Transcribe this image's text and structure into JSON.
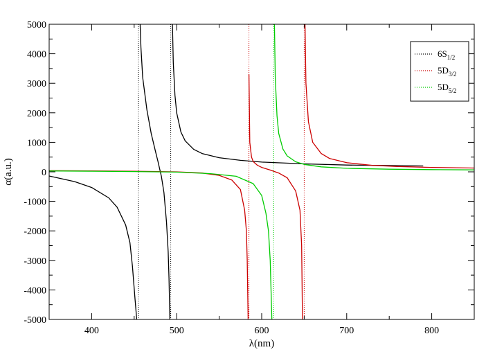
{
  "chart_data": {
    "type": "line",
    "xlabel": "λ(nm)",
    "ylabel": "α(a.u.)",
    "xlim": [
      350,
      850
    ],
    "ylim": [
      -5000,
      5000
    ],
    "x_ticks": [
      400,
      500,
      600,
      700,
      800
    ],
    "y_ticks": [
      -5000,
      -4000,
      -3000,
      -2000,
      -1000,
      0,
      1000,
      2000,
      3000,
      4000,
      5000
    ],
    "grid": false,
    "legend_position": "top-right",
    "resonance_lines": [
      {
        "x": 455,
        "color": "#000000"
      },
      {
        "x": 493,
        "color": "#000000"
      },
      {
        "x": 585,
        "color": "#cc0000"
      },
      {
        "x": 614,
        "color": "#00cc00"
      },
      {
        "x": 650,
        "color": "#cc0000"
      }
    ],
    "series": [
      {
        "name": "6S",
        "subscript": "1/2",
        "color": "#000000",
        "segments": [
          {
            "x": [
              350,
              380,
              400,
              420,
              430,
              440,
              445,
              448,
              451,
              453
            ],
            "y": [
              -140,
              -330,
              -530,
              -880,
              -1200,
              -1800,
              -2400,
              -3200,
              -4300,
              -5000
            ]
          },
          {
            "x": [
              457,
              458,
              460,
              465,
              470,
              475,
              478,
              480,
              482,
              485,
              488,
              490,
              491,
              492
            ],
            "y": [
              5000,
              4200,
              3200,
              2100,
              1300,
              700,
              350,
              100,
              -150,
              -700,
              -1700,
              -2700,
              -3600,
              -5000
            ]
          },
          {
            "x": [
              495,
              496,
              498,
              500,
              505,
              510,
              520,
              530,
              550,
              575,
              600,
              650,
              700,
              790
            ],
            "y": [
              5000,
              3700,
              2600,
              2000,
              1350,
              1050,
              760,
              620,
              480,
              390,
              330,
              270,
              230,
              200
            ]
          }
        ]
      },
      {
        "name": "5D",
        "subscript": "3/2",
        "color": "#cc0000",
        "segments": [
          {
            "x": [
              350,
              400,
              450,
              500,
              530,
              550,
              565,
              575,
              580,
              582,
              583,
              584
            ],
            "y": [
              40,
              30,
              20,
              0,
              -40,
              -120,
              -280,
              -600,
              -1300,
              -2000,
              -3000,
              -5000
            ]
          },
          {
            "x": [
              585,
              586,
              588,
              590,
              595,
              600,
              610,
              620,
              630,
              640,
              645,
              647,
              648
            ],
            "y": [
              3300,
              1000,
              500,
              350,
              220,
              150,
              60,
              -40,
              -200,
              -650,
              -1300,
              -2500,
              -5000
            ]
          },
          {
            "x": [
              651,
              652,
              655,
              660,
              670,
              680,
              700,
              730,
              760,
              800,
              850
            ],
            "y": [
              5000,
              3000,
              1700,
              1000,
              620,
              450,
              310,
              220,
              180,
              150,
              130
            ]
          }
        ]
      },
      {
        "name": "5D",
        "subscript": "5/2",
        "color": "#00cc00",
        "segments": [
          {
            "x": [
              350,
              400,
              450,
              500,
              540,
              570,
              590,
              600,
              605,
              608,
              610,
              611,
              612
            ],
            "y": [
              30,
              20,
              10,
              -10,
              -60,
              -150,
              -400,
              -800,
              -1400,
              -2000,
              -3000,
              -4000,
              -5000
            ]
          },
          {
            "x": [
              615,
              616,
              618,
              620,
              625,
              630,
              640,
              650,
              670,
              700,
              750,
              800,
              850
            ],
            "y": [
              5000,
              3200,
              1900,
              1300,
              770,
              540,
              340,
              250,
              170,
              120,
              90,
              75,
              65
            ]
          }
        ]
      }
    ]
  }
}
